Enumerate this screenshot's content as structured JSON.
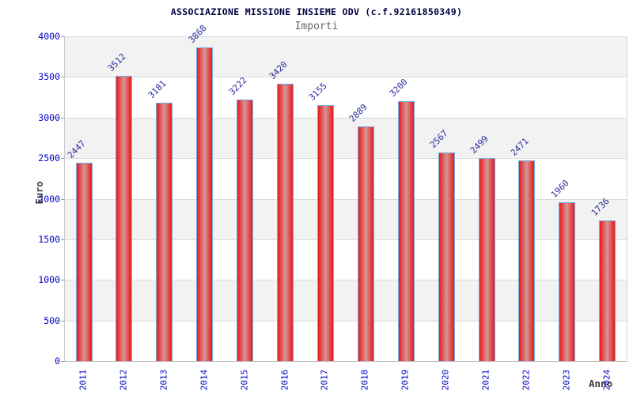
{
  "header": {
    "title": "ASSOCIAZIONE MISSIONE INSIEME ODV (c.f.92161850349)",
    "subtitle": "Importi"
  },
  "chart_data": {
    "type": "bar",
    "title": "ASSOCIAZIONE MISSIONE INSIEME ODV (c.f.92161850349)",
    "subtitle": "Importi",
    "xlabel": "Anno",
    "ylabel": "Euro",
    "categories": [
      "2011",
      "2012",
      "2013",
      "2014",
      "2015",
      "2016",
      "2017",
      "2018",
      "2019",
      "2020",
      "2021",
      "2022",
      "2023",
      "2024"
    ],
    "values": [
      2447,
      3512,
      3181,
      3868,
      3222,
      3420,
      3155,
      2889,
      3200,
      2567,
      2499,
      2471,
      1960,
      1736
    ],
    "ylim": [
      0,
      4000
    ],
    "ytick_step": 500,
    "yticks": [
      0,
      500,
      1000,
      1500,
      2000,
      2500,
      3000,
      3500,
      4000
    ],
    "grid": "horizontal alternating bands, gridline each 500",
    "legend": "none",
    "colors": {
      "bar_fill_edge": "#e01f1f",
      "bar_fill_center": "#d29898",
      "bar_border": "#77ade6",
      "value_label": "#2b2b9e",
      "tick_label": "#0000cc",
      "band_gray": "#f2f2f2",
      "band_white": "#ffffff",
      "gridline": "#dadada",
      "title": "#000040",
      "subtitle": "#666666",
      "axis_title": "#3d3d3d"
    }
  }
}
